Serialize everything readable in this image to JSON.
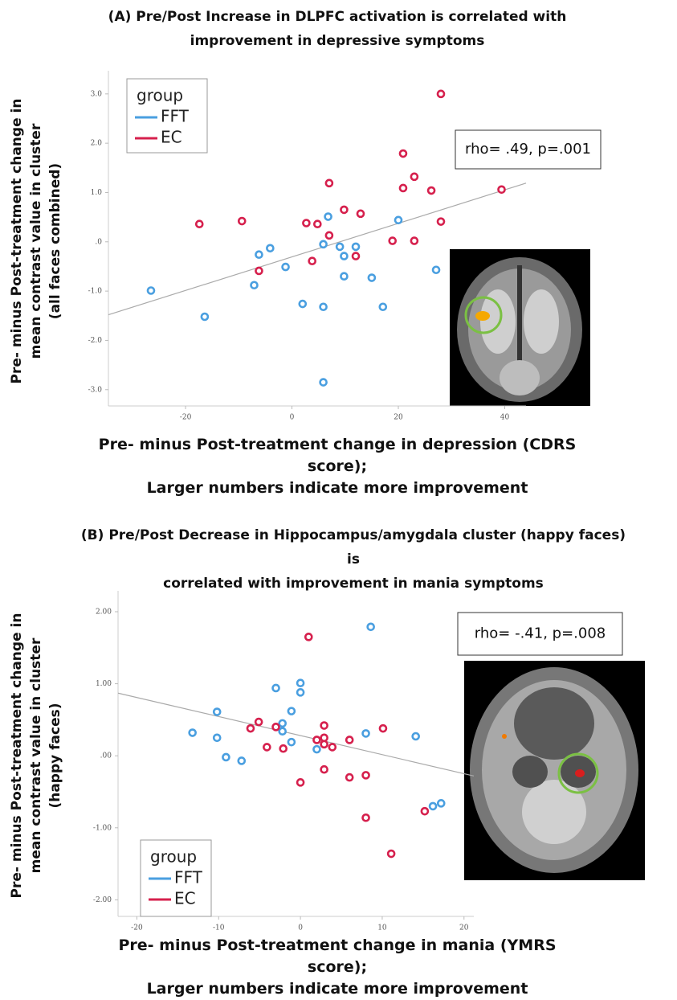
{
  "chart_data": [
    {
      "type": "scatter",
      "title": "(A)  Pre/Post  Increase in DLPFC activation is correlated with\nimprovement  in depressive symptoms",
      "x_label": "Pre- minus Post-treatment change in depression (CDRS score);\nLarger numbers indicate more improvement",
      "y_label": "Pre- minus Post-treatment  change in\nmean contrast value in cluster\n(all faces combined)",
      "annotation": "rho= .49, p=.001",
      "legend_title": "group",
      "series": [
        {
          "name": "FFT",
          "color": "#4a9fe0",
          "x": [
            -26.5,
            -16.4,
            -6.2,
            -4.1,
            -7.1,
            -1.2,
            2.0,
            5.9,
            5.9,
            5.9,
            6.8,
            9.0,
            9.8,
            9.8,
            12.0,
            15.0,
            17.1,
            20.0,
            27.1
          ],
          "values": [
            -0.99,
            -1.52,
            -0.26,
            -0.13,
            -0.88,
            -0.51,
            -1.26,
            -0.05,
            -1.32,
            -2.85,
            0.51,
            -0.1,
            -0.29,
            -0.7,
            -0.1,
            -0.73,
            -1.32,
            0.44,
            -0.57
          ]
        },
        {
          "name": "EC",
          "color": "#d6204d",
          "x": [
            28.0,
            20.9,
            23.0,
            20.9,
            26.2,
            39.4,
            28.0,
            7.0,
            9.8,
            12.9,
            -9.4,
            -17.4,
            2.7,
            4.8,
            7.0,
            -6.2,
            3.8,
            12.0,
            18.9,
            23.0
          ],
          "values": [
            3.0,
            1.79,
            1.32,
            1.09,
            1.04,
            1.06,
            0.41,
            1.19,
            0.65,
            0.57,
            0.42,
            0.36,
            0.38,
            0.36,
            0.13,
            -0.59,
            -0.39,
            -0.29,
            0.02,
            0.02
          ]
        }
      ],
      "fit_line": {
        "x": [
          -34.5,
          44
        ],
        "y": [
          -1.48,
          1.19
        ]
      },
      "xlim": [
        -34.5,
        44
      ],
      "ylim": [
        -3.33,
        3.47
      ],
      "xticks": [
        -20,
        0,
        20,
        40
      ],
      "yticks": [
        {
          "value": 3,
          "label": "3.0"
        },
        {
          "value": 2,
          "label": "2.0"
        },
        {
          "value": 1,
          "label": "1.0"
        },
        {
          "value": 0,
          "label": ".0"
        },
        {
          "value": -1,
          "label": "-1.0"
        },
        {
          "value": -2,
          "label": "-2.0"
        },
        {
          "value": -3,
          "label": "-3.0"
        }
      ],
      "legend": "upper left"
    },
    {
      "type": "scatter",
      "title": "(B) Pre/Post  Decrease in Hippocampus/amygdala  cluster (happy faces) is\ncorrelated  with improvement  in mania symptoms",
      "x_label": "Pre- minus Post-treatment change in mania (YMRS score);\nLarger numbers indicate more improvement",
      "y_label": "Pre- minus Post-treatment change in\nmean contrast value in cluster\n(happy faces)",
      "annotation": "rho= -.41, p=.008",
      "legend_title": "group",
      "series": [
        {
          "name": "FFT",
          "color": "#4a9fe0",
          "x": [
            -13.2,
            -10.2,
            -10.2,
            -9.1,
            -7.2,
            -3.0,
            -2.2,
            -2.2,
            -1.1,
            -1.1,
            0,
            0,
            2.0,
            8.6,
            8.0,
            14.1,
            16.2,
            17.2
          ],
          "values": [
            0.32,
            0.61,
            0.25,
            -0.02,
            -0.07,
            0.94,
            0.45,
            0.34,
            0.62,
            0.19,
            1.01,
            0.88,
            0.09,
            1.79,
            0.31,
            0.27,
            -0.7,
            -0.66
          ]
        },
        {
          "name": "EC",
          "color": "#d6204d",
          "x": [
            1.0,
            -6.1,
            -5.1,
            -4.1,
            -3.0,
            -2.1,
            2.0,
            2.9,
            2.9,
            2.9,
            3.9,
            2.9,
            6.0,
            6.0,
            8.0,
            8.0,
            0,
            10.1,
            11.1,
            15.2
          ],
          "values": [
            1.65,
            0.38,
            0.47,
            0.12,
            0.4,
            0.1,
            0.22,
            0.42,
            0.25,
            0.16,
            0.12,
            -0.19,
            0.22,
            -0.3,
            -0.27,
            -0.86,
            -0.37,
            0.38,
            -1.36,
            -0.77
          ]
        }
      ],
      "fit_line": {
        "x": [
          -22.3,
          21.2
        ],
        "y": [
          0.87,
          -0.28
        ]
      },
      "xlim": [
        -22.3,
        21.2
      ],
      "ylim": [
        -2.23,
        2.29
      ],
      "xticks": [
        -20,
        -10,
        0,
        10,
        20
      ],
      "yticks": [
        {
          "value": 2,
          "label": "2.00"
        },
        {
          "value": 1,
          "label": "1.00"
        },
        {
          "value": 0,
          "label": ".00"
        },
        {
          "value": -1,
          "label": "-1.00"
        },
        {
          "value": -2,
          "label": "-2.00"
        }
      ],
      "legend": "lower left"
    }
  ]
}
